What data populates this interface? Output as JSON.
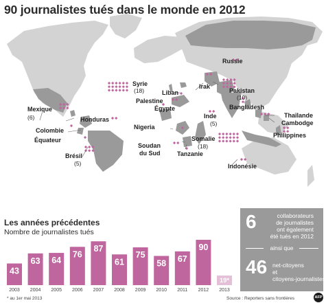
{
  "title": "90 journalistes tués dans le monde en 2012",
  "map_labels": [
    {
      "id": "russie",
      "name": "Russie",
      "num": ""
    },
    {
      "id": "syrie",
      "name": "Syrie",
      "num": "(18)"
    },
    {
      "id": "irak",
      "name": "Irak",
      "num": ""
    },
    {
      "id": "liban",
      "name": "Liban",
      "num": ""
    },
    {
      "id": "pakistan",
      "name": "Pakistan",
      "num": "(10)"
    },
    {
      "id": "palestine",
      "name": "Palestine",
      "num": ""
    },
    {
      "id": "egypte",
      "name": "Égypte",
      "num": ""
    },
    {
      "id": "bangladesh",
      "name": "Bangladesh",
      "num": ""
    },
    {
      "id": "mexique",
      "name": "Mexique",
      "num": "(6)"
    },
    {
      "id": "honduras",
      "name": "Honduras",
      "num": ""
    },
    {
      "id": "inde",
      "name": "Inde",
      "num": "(5)"
    },
    {
      "id": "thailande",
      "name": "Thaïlande",
      "num": ""
    },
    {
      "id": "cambodge",
      "name": "Cambodge",
      "num": ""
    },
    {
      "id": "colombie",
      "name": "Colombie",
      "num": ""
    },
    {
      "id": "nigeria",
      "name": "Nigeria",
      "num": ""
    },
    {
      "id": "equateur",
      "name": "Équateur",
      "num": ""
    },
    {
      "id": "philippines",
      "name": "Philippines",
      "num": ""
    },
    {
      "id": "soudan",
      "name": "Soudan",
      "num": "du Sud"
    },
    {
      "id": "somalie",
      "name": "Somalie",
      "num": "(18)"
    },
    {
      "id": "bresil",
      "name": "Brésil",
      "num": "(5)"
    },
    {
      "id": "tanzanie",
      "name": "Tanzanie",
      "num": ""
    },
    {
      "id": "indonesie",
      "name": "Indonésie",
      "num": ""
    }
  ],
  "section": {
    "title": "Les années précédentes",
    "subtitle": "Nombre de journalistes tués"
  },
  "chart_data": {
    "type": "bar",
    "title": "Les années précédentes",
    "ylabel": "Nombre de journalistes tués",
    "categories": [
      "2003",
      "2004",
      "2005",
      "2006",
      "2007",
      "2008",
      "2009",
      "2010",
      "2011",
      "2012",
      "2013"
    ],
    "values": [
      43,
      63,
      64,
      76,
      87,
      61,
      75,
      58,
      67,
      90,
      19
    ],
    "value_labels": [
      "43",
      "63",
      "64",
      "76",
      "87",
      "61",
      "75",
      "58",
      "67",
      "90",
      "19*"
    ],
    "colors": {
      "bar": "#c0669e",
      "partial_bar": "#e4bfd7",
      "map_highlight": "#9a9a9a",
      "map_land": "#d3d3d3",
      "marker": "#c0669e"
    }
  },
  "box": {
    "n1": "6",
    "t1_lines": [
      "collaborateurs",
      "de journalistes",
      "ont également",
      "été tués en 2012"
    ],
    "mid": "ainsi que",
    "n2": "46",
    "t2_lines": [
      "net-citoyens",
      "et",
      "citoyens-journalistes"
    ]
  },
  "footnote": "* au 1er mai 2013",
  "source": "Source : Reporters sans frontières",
  "logo": "AFP"
}
